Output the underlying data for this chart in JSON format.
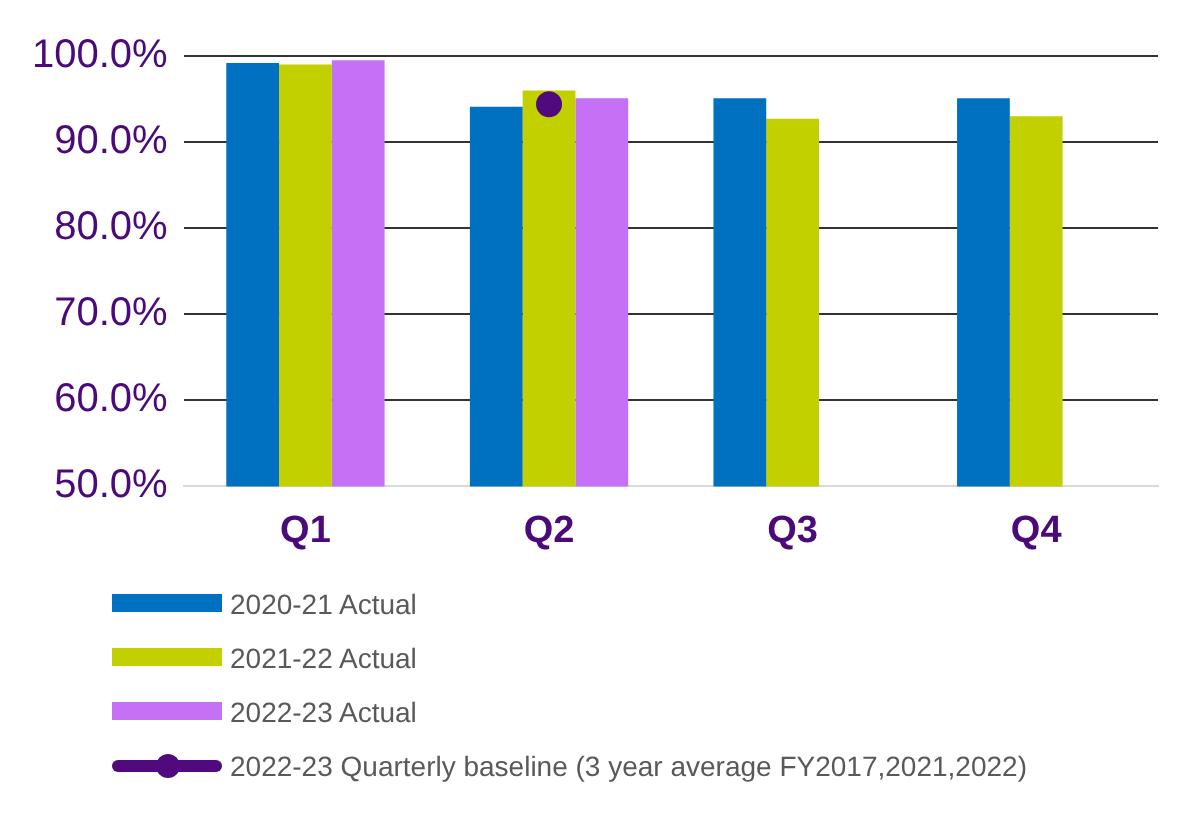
{
  "chart_data": {
    "type": "bar",
    "categories": [
      "Q1",
      "Q2",
      "Q3",
      "Q4"
    ],
    "series": [
      {
        "name": "2020-21 Actual",
        "color": "#0070c0",
        "values": [
          99.2,
          94.1,
          95.1,
          95.1
        ]
      },
      {
        "name": "2021-22 Actual",
        "color": "#c3d000",
        "values": [
          99.0,
          96.0,
          92.7,
          93.0
        ]
      },
      {
        "name": "2022-23 Actual",
        "color": "#c471f5",
        "values": [
          99.5,
          95.1,
          null,
          null
        ]
      },
      {
        "name": "2022-23 Quarterly baseline (3 year average FY2017,2021,2022)",
        "type": "line",
        "color": "#500a7e",
        "values": [
          null,
          94.4,
          null,
          null
        ]
      }
    ],
    "ylim": [
      50,
      100
    ],
    "yticks": [
      {
        "value": 50,
        "label": "50.0%"
      },
      {
        "value": 60,
        "label": "60.0%"
      },
      {
        "value": 70,
        "label": "70.0%"
      },
      {
        "value": 80,
        "label": "80.0%"
      },
      {
        "value": 90,
        "label": "90.0%"
      },
      {
        "value": 100,
        "label": "100.0%"
      }
    ],
    "grid": "y",
    "legend": "bottom",
    "marker": "circle"
  }
}
